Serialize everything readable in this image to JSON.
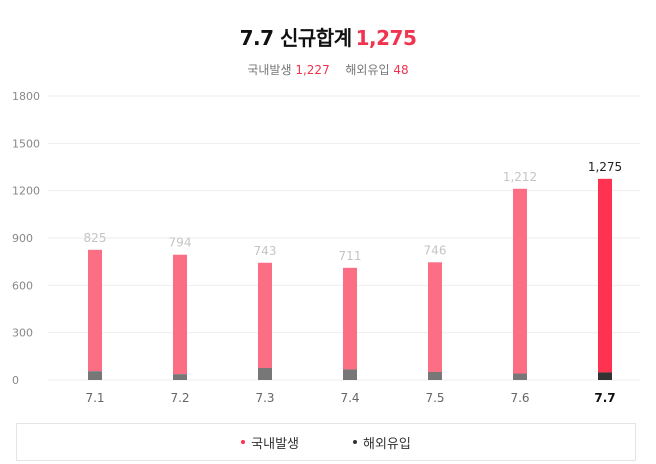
{
  "header": {
    "title": "7.7 신규합계",
    "total": "1,275",
    "domestic_label": "국내발생",
    "domestic_value": "1,227",
    "imported_label": "해외유입",
    "imported_value": "48"
  },
  "colors": {
    "domestic": "#fb6e84",
    "domestic_highlight": "#ff3250",
    "imported": "#777777",
    "imported_highlight": "#333333",
    "grid": "#eeeeee"
  },
  "chart_data": {
    "type": "bar",
    "stacked": true,
    "categories": [
      "7.1",
      "7.2",
      "7.3",
      "7.4",
      "7.5",
      "7.6",
      "7.7"
    ],
    "highlight_index": 6,
    "totals": [
      "825",
      "794",
      "743",
      "711",
      "746",
      "1,212",
      "1,275"
    ],
    "series": [
      {
        "name": "국내발생",
        "values": [
          769,
          757,
          667,
          644,
          695,
          1171,
          1227
        ]
      },
      {
        "name": "해외유입",
        "values": [
          56,
          37,
          76,
          67,
          51,
          41,
          48
        ]
      }
    ],
    "yticks": [
      "1800",
      "1500",
      "1200",
      "900",
      "600",
      "300",
      "0"
    ],
    "ylim": [
      0,
      1800
    ],
    "grid": true,
    "legend_position": "bottom"
  },
  "legend": {
    "items": [
      {
        "label": "국내발생",
        "color": "#ff3250"
      },
      {
        "label": "해외유입",
        "color": "#333333"
      }
    ]
  }
}
